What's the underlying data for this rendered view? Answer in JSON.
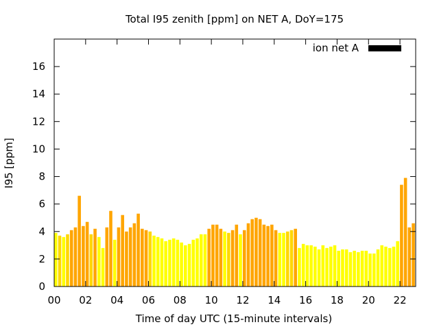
{
  "chart_data": {
    "type": "bar",
    "title": "Total I95 zenith [ppm] on NET A, DoY=175",
    "xlabel": "Time of day UTC (15-minute intervals)",
    "ylabel": "I95 [ppm]",
    "ylim": [
      0,
      18
    ],
    "xlim": [
      0,
      23
    ],
    "yticks": [
      0,
      2,
      4,
      6,
      8,
      10,
      12,
      14,
      16
    ],
    "ytick_labels": [
      "0",
      "2",
      "4",
      "6",
      "8",
      "10",
      "12",
      "14",
      "16"
    ],
    "xticks": [
      0,
      2,
      4,
      6,
      8,
      10,
      12,
      14,
      16,
      18,
      20,
      22
    ],
    "xtick_labels": [
      "00",
      "02",
      "04",
      "06",
      "08",
      "10",
      "12",
      "14",
      "16",
      "18",
      "20",
      "22"
    ],
    "grid": false,
    "legend": {
      "label": "ion net A",
      "placement": "top-right",
      "color": "#000000"
    },
    "bar_width_hours": 0.2,
    "colors": {
      "low": "#ffff00",
      "mid": "#ffd700",
      "high": "#ffa500"
    },
    "series": [
      {
        "x": [
          0.0,
          0.25,
          0.5,
          0.75,
          1.0,
          1.25,
          1.5,
          1.75,
          2.0,
          2.25,
          2.5,
          2.75,
          3.0,
          3.25,
          3.5,
          3.75,
          4.0,
          4.25,
          4.5,
          4.75,
          5.0,
          5.25,
          5.5,
          5.75,
          6.0,
          6.25,
          6.5,
          6.75,
          7.0,
          7.25,
          7.5,
          7.75,
          8.0,
          8.25,
          8.5,
          8.75,
          9.0,
          9.25,
          9.5,
          9.75,
          10.0,
          10.25,
          10.5,
          10.75,
          11.0,
          11.25,
          11.5,
          11.75,
          12.0,
          12.25,
          12.5,
          12.75,
          13.0,
          13.25,
          13.5,
          13.75,
          14.0,
          14.25,
          14.5,
          14.75,
          15.0,
          15.25,
          15.5,
          15.75,
          16.0,
          16.25,
          16.5,
          16.75,
          17.0,
          17.25,
          17.5,
          17.75,
          18.0,
          18.25,
          18.5,
          18.75,
          19.0,
          19.25,
          19.5,
          19.75,
          20.0,
          20.25,
          20.5,
          20.75,
          21.0,
          21.25,
          21.5,
          21.75,
          22.0,
          22.25,
          22.5,
          22.75
        ],
        "values": [
          3.9,
          3.7,
          3.6,
          3.8,
          4.1,
          4.3,
          6.6,
          4.4,
          4.7,
          3.8,
          4.2,
          3.6,
          2.8,
          4.3,
          5.5,
          3.4,
          4.3,
          5.2,
          4.0,
          4.3,
          4.6,
          5.3,
          4.2,
          4.1,
          4.0,
          3.7,
          3.6,
          3.5,
          3.3,
          3.4,
          3.5,
          3.4,
          3.2,
          3.0,
          3.1,
          3.4,
          3.5,
          3.8,
          3.8,
          4.2,
          4.5,
          4.5,
          4.2,
          4.0,
          3.9,
          4.1,
          4.5,
          3.8,
          4.1,
          4.6,
          4.9,
          5.0,
          4.9,
          4.5,
          4.4,
          4.5,
          4.1,
          3.9,
          3.9,
          4.0,
          4.1,
          4.2,
          2.8,
          3.1,
          3.0,
          3.0,
          2.9,
          2.7,
          3.0,
          2.8,
          2.9,
          3.0,
          2.6,
          2.7,
          2.7,
          2.5,
          2.6,
          2.5,
          2.6,
          2.6,
          2.4,
          2.4,
          2.7,
          3.0,
          2.9,
          2.8,
          2.9,
          3.3,
          7.4,
          7.9,
          4.3,
          4.6
        ],
        "colors": [
          "low",
          "mid",
          "low",
          "mid",
          "high",
          "high",
          "high",
          "high",
          "high",
          "mid",
          "high",
          "low",
          "low",
          "high",
          "high",
          "low",
          "high",
          "high",
          "high",
          "high",
          "high",
          "high",
          "high",
          "high",
          "mid",
          "low",
          "low",
          "low",
          "low",
          "low",
          "low",
          "low",
          "low",
          "low",
          "low",
          "low",
          "low",
          "low",
          "low",
          "high",
          "high",
          "high",
          "high",
          "low",
          "mid",
          "high",
          "high",
          "low",
          "high",
          "high",
          "high",
          "high",
          "high",
          "high",
          "high",
          "high",
          "high",
          "low",
          "low",
          "mid",
          "mid",
          "high",
          "low",
          "low",
          "low",
          "low",
          "low",
          "low",
          "low",
          "low",
          "low",
          "low",
          "low",
          "low",
          "low",
          "low",
          "low",
          "low",
          "low",
          "low",
          "low",
          "low",
          "low",
          "low",
          "low",
          "low",
          "low",
          "low",
          "high",
          "high",
          "high",
          "high"
        ]
      }
    ]
  }
}
